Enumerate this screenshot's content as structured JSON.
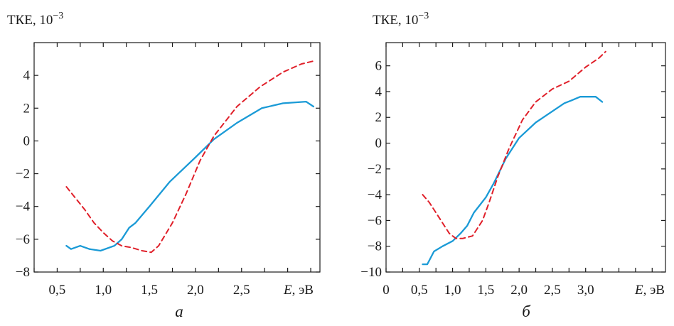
{
  "chart_data": [
    {
      "type": "line",
      "ylabel": "ТКЕ, 10",
      "ylabel_exp": "−3",
      "xlabel_var": "E",
      "xlabel_unit": ", эВ",
      "panel_label": "а",
      "xlim": [
        0.25,
        3.35
      ],
      "ylim": [
        -8,
        6
      ],
      "x_ticks": [
        0.5,
        1.0,
        1.5,
        2.0,
        2.5
      ],
      "x_tick_labels": [
        "0,5",
        "1,0",
        "1,5",
        "2,0",
        "2,5"
      ],
      "x_minor": [
        0.25,
        0.75,
        1.25,
        1.75,
        2.25,
        2.75,
        3.0,
        3.25
      ],
      "y_ticks": [
        4,
        2,
        0,
        -2,
        -4,
        -6,
        -8
      ],
      "y_tick_labels": [
        "4",
        "2",
        "0",
        "−2",
        "−4",
        "−6",
        "−8"
      ],
      "grid": false,
      "series": [
        {
          "color": "#1a9ad6",
          "style": "solid",
          "x": [
            0.6,
            0.65,
            0.75,
            0.85,
            0.97,
            1.12,
            1.2,
            1.28,
            1.35,
            1.5,
            1.72,
            2.0,
            2.2,
            2.45,
            2.72,
            2.95,
            3.2,
            3.28
          ],
          "y": [
            -6.4,
            -6.6,
            -6.4,
            -6.6,
            -6.7,
            -6.4,
            -6.0,
            -5.3,
            -5.0,
            -4.0,
            -2.5,
            -1.0,
            0.1,
            1.1,
            2.0,
            2.3,
            2.4,
            2.1
          ]
        },
        {
          "color": "#e0202a",
          "style": "dashed",
          "x": [
            0.6,
            0.7,
            0.8,
            0.9,
            1.0,
            1.1,
            1.2,
            1.3,
            1.42,
            1.52,
            1.6,
            1.75,
            1.9,
            2.05,
            2.2,
            2.45,
            2.7,
            2.95,
            3.15,
            3.3
          ],
          "y": [
            -2.8,
            -3.5,
            -4.2,
            -5.0,
            -5.6,
            -6.1,
            -6.4,
            -6.5,
            -6.7,
            -6.8,
            -6.4,
            -5.0,
            -3.2,
            -1.2,
            0.3,
            2.1,
            3.3,
            4.2,
            4.7,
            4.9
          ]
        }
      ]
    },
    {
      "type": "line",
      "ylabel": "ТКЕ, 10",
      "ylabel_exp": "−3",
      "xlabel_var": "E",
      "xlabel_unit": ", эВ",
      "panel_label": "б",
      "xlim": [
        0,
        4.2
      ],
      "ylim": [
        -10,
        7.8
      ],
      "x_ticks": [
        0,
        0.5,
        1.0,
        1.5,
        2.0,
        2.5,
        3.0
      ],
      "x_tick_labels": [
        "0",
        "0,5",
        "1,0",
        "1,5",
        "2,0",
        "2,5",
        "3,0"
      ],
      "x_minor": [
        0.25,
        0.75,
        1.25,
        1.75,
        2.25,
        2.75,
        3.25,
        3.5,
        3.75,
        4.0
      ],
      "y_ticks": [
        6,
        4,
        2,
        0,
        -2,
        -4,
        -6,
        -8,
        -10
      ],
      "y_tick_labels": [
        "6",
        "4",
        "2",
        "0",
        "−2",
        "−4",
        "−6",
        "−8",
        "−10"
      ],
      "grid": false,
      "series": [
        {
          "color": "#1a9ad6",
          "style": "solid",
          "x": [
            0.55,
            0.62,
            0.72,
            0.85,
            1.0,
            1.12,
            1.22,
            1.32,
            1.5,
            1.62,
            1.8,
            2.0,
            2.25,
            2.68,
            2.78,
            2.92,
            3.15,
            3.25
          ],
          "y": [
            -9.4,
            -9.4,
            -8.4,
            -8.0,
            -7.6,
            -7.0,
            -6.4,
            -5.4,
            -4.2,
            -3.1,
            -1.2,
            0.4,
            1.6,
            3.1,
            3.3,
            3.6,
            3.6,
            3.2
          ]
        },
        {
          "color": "#e0202a",
          "style": "dashed",
          "x": [
            0.55,
            0.65,
            0.75,
            0.85,
            0.95,
            1.05,
            1.15,
            1.3,
            1.45,
            1.55,
            1.68,
            1.85,
            2.05,
            2.25,
            2.5,
            2.75,
            3.0,
            3.2,
            3.3
          ],
          "y": [
            -4.0,
            -4.6,
            -5.4,
            -6.2,
            -7.0,
            -7.4,
            -7.4,
            -7.2,
            -6.0,
            -4.6,
            -2.6,
            -0.4,
            1.8,
            3.2,
            4.2,
            4.8,
            5.9,
            6.6,
            7.1
          ]
        }
      ]
    }
  ]
}
